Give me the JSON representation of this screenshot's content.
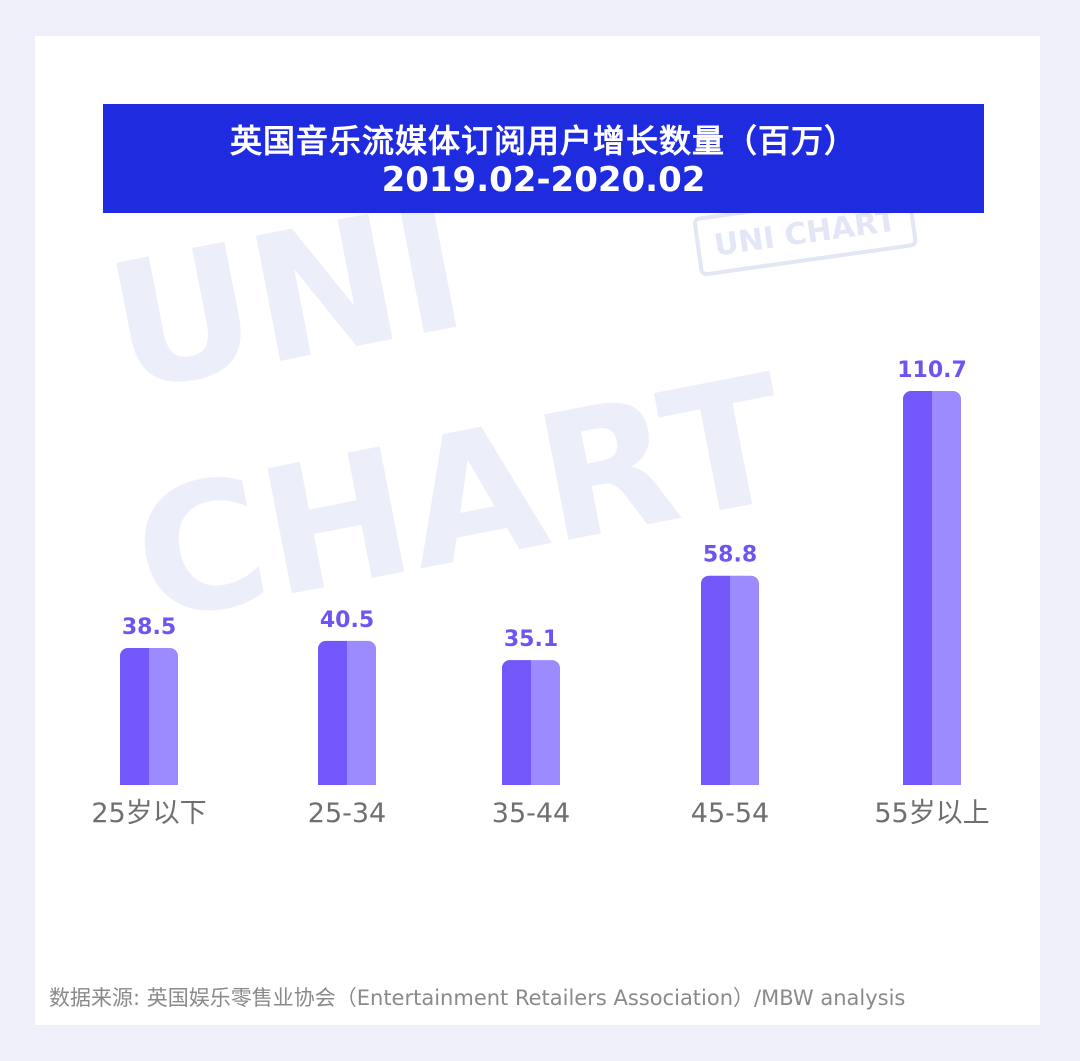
{
  "title": {
    "line1": "英国音乐流媒体订阅用户增长数量（百万）",
    "line2": "2019.02-2020.02"
  },
  "watermark": {
    "big_line1": "UNI",
    "big_line2": "CHART",
    "stamp": "UNI CHART"
  },
  "source": "数据来源: 英国娱乐零售业协会（Entertainment Retailers Association）/MBW analysis",
  "colors": {
    "title_bg": "#1f2bdf",
    "bar_dark": "#7457fa",
    "bar_light": "#9c8bfe",
    "value_label": "#6c55f0",
    "category_label": "#6f6f6f",
    "page_bg": "#eeeff9"
  },
  "chart_data": {
    "type": "bar",
    "categories": [
      "25岁以下",
      "25-34",
      "35-44",
      "45-54",
      "55岁以上"
    ],
    "values": [
      38.5,
      40.5,
      35.1,
      58.8,
      110.7
    ],
    "value_labels": [
      "38.5",
      "40.5",
      "35.1",
      "58.8",
      "110.7"
    ],
    "title": "英国音乐流媒体订阅用户增长数量（百万） 2019.02-2020.02",
    "xlabel": "",
    "ylabel": "",
    "ylim": [
      0,
      110.7
    ],
    "grid": false,
    "legend": "none"
  }
}
